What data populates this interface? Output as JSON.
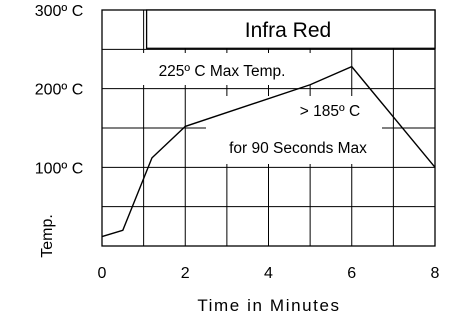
{
  "chart_data": {
    "type": "line",
    "title": "Infra Red",
    "xlabel": "Time in Minutes",
    "ylabel": "Temp.",
    "xlim": [
      0,
      8
    ],
    "ylim": [
      0,
      300
    ],
    "grid": true,
    "x_ticks": [
      "0",
      "2",
      "4",
      "6",
      "8"
    ],
    "y_ticks": [
      {
        "value": 100,
        "label": "100º C"
      },
      {
        "value": 200,
        "label": "200º C"
      },
      {
        "value": 300,
        "label": "300º C"
      }
    ],
    "series": [
      {
        "x": [
          0,
          0.5,
          1.2,
          2,
          5,
          6,
          8
        ],
        "y": [
          12,
          20,
          112,
          152,
          205,
          228,
          100
        ]
      }
    ],
    "annotations": [
      {
        "text": "225º C Max Temp."
      },
      {
        "text": "> 185º C"
      },
      {
        "text": "for 90 Seconds Max"
      }
    ]
  }
}
